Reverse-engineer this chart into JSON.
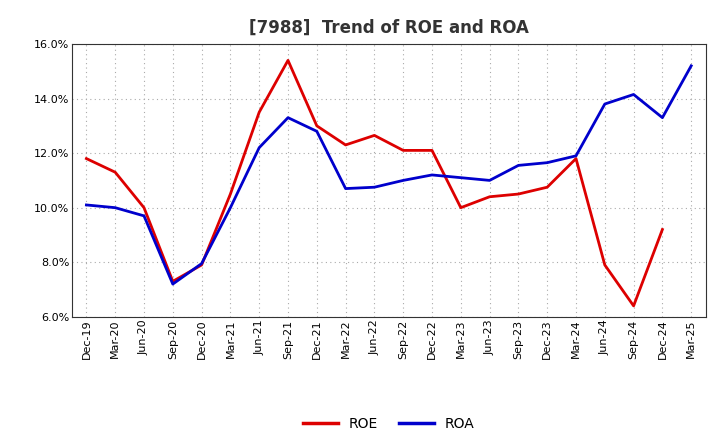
{
  "title": "[7988]  Trend of ROE and ROA",
  "labels": [
    "Dec-19",
    "Mar-20",
    "Jun-20",
    "Sep-20",
    "Dec-20",
    "Mar-21",
    "Jun-21",
    "Sep-21",
    "Dec-21",
    "Mar-22",
    "Jun-22",
    "Sep-22",
    "Dec-22",
    "Mar-23",
    "Jun-23",
    "Sep-23",
    "Dec-23",
    "Mar-24",
    "Jun-24",
    "Sep-24",
    "Dec-24",
    "Mar-25"
  ],
  "ROE": [
    11.8,
    11.3,
    10.0,
    7.3,
    7.9,
    10.5,
    13.5,
    15.4,
    13.0,
    12.3,
    12.65,
    12.1,
    12.1,
    10.0,
    10.4,
    10.5,
    10.75,
    11.8,
    7.9,
    6.4,
    9.2,
    null
  ],
  "ROA": [
    10.1,
    10.0,
    9.7,
    7.2,
    7.95,
    10.0,
    12.2,
    13.3,
    12.8,
    10.7,
    10.75,
    11.0,
    11.2,
    11.1,
    11.0,
    11.55,
    11.65,
    11.9,
    13.8,
    14.15,
    13.3,
    15.2
  ],
  "ROE_color": "#dd0000",
  "ROA_color": "#0000cc",
  "ylim": [
    6.0,
    16.0
  ],
  "yticks": [
    6.0,
    8.0,
    10.0,
    12.0,
    14.0,
    16.0
  ],
  "background_color": "#ffffff",
  "plot_bg_color": "#ffffff",
  "grid_color": "#aaaaaa",
  "title_fontsize": 12,
  "tick_fontsize": 8,
  "legend_labels": [
    "ROE",
    "ROA"
  ]
}
